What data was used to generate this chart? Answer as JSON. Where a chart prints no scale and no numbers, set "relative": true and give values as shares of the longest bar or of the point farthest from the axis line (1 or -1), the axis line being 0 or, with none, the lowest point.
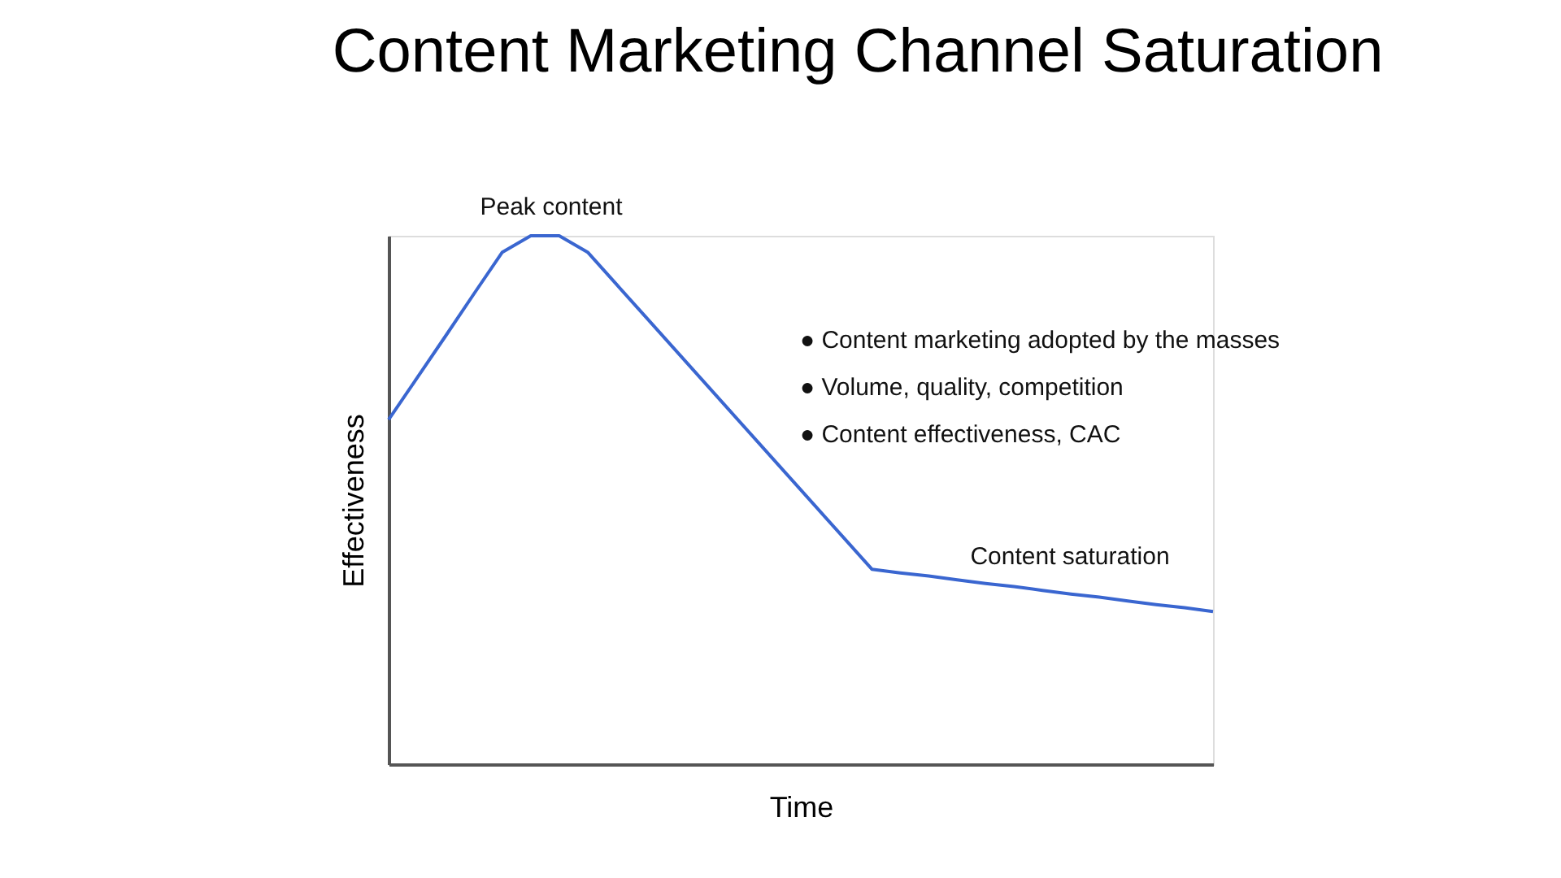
{
  "chart_data": {
    "type": "line",
    "title": "Content Marketing Channel Saturation",
    "xlabel": "Time",
    "ylabel": "Effectiveness",
    "relative": true,
    "categories": [
      null,
      null,
      null,
      null,
      null,
      null,
      null,
      null,
      null,
      null,
      null,
      null,
      null,
      null,
      null,
      null,
      null,
      null,
      null,
      null,
      null,
      null,
      null,
      null,
      null,
      null,
      null,
      null,
      null,
      null
    ],
    "series": [
      {
        "color": "#3a66d0",
        "values": [
          0.652,
          0.731,
          0.81,
          0.89,
          0.969,
          1,
          1,
          0.969,
          0.909,
          0.849,
          0.789,
          0.729,
          0.669,
          0.609,
          0.549,
          0.489,
          0.429,
          0.369,
          0.362,
          0.356,
          0.349,
          0.342,
          0.336,
          0.329,
          0.322,
          0.316,
          0.309,
          0.302,
          0.296,
          0.289
        ]
      }
    ],
    "annotations": [
      "Peak content",
      "● Content marketing adopted by the masses",
      "● Volume, quality, competition",
      "● Content effectiveness, CAC",
      "Content saturation"
    ]
  }
}
